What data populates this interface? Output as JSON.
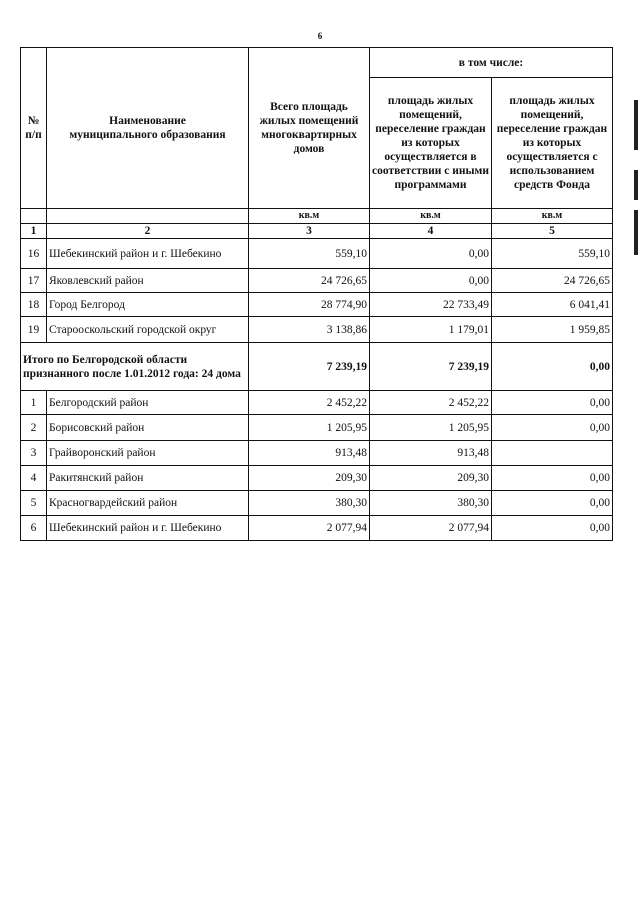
{
  "page_number": "6",
  "header": {
    "col1": "№ п/п",
    "col2": "Наименование муниципального образования",
    "col3": "Всего площадь жилых помещений многоквартирных домов",
    "group": "в том числе:",
    "col4": "площадь жилых помещений, переселение граждан из которых осуществляется в соответствии с иными программами",
    "col5": "площадь жилых помещений, переселение граждан из которых осуществляется с использованием средств Фонда",
    "unit3": "кв.м",
    "unit4": "кв.м",
    "unit5": "кв.м",
    "n1": "1",
    "n2": "2",
    "n3": "3",
    "n4": "4",
    "n5": "5"
  },
  "rows_a": [
    {
      "no": "16",
      "name": "Шебекинский район и г. Шебекино",
      "total": "559,10",
      "other": "0,00",
      "fund": "559,10"
    },
    {
      "no": "17",
      "name": "Яковлевский район",
      "total": "24 726,65",
      "other": "0,00",
      "fund": "24 726,65"
    },
    {
      "no": "18",
      "name": "Город Белгород",
      "total": "28 774,90",
      "other": "22 733,49",
      "fund": "6 041,41"
    },
    {
      "no": "19",
      "name": "Старооскольский городской округ",
      "total": "3 138,86",
      "other": "1 179,01",
      "fund": "1 959,85"
    }
  ],
  "subtotal": {
    "label": "Итого по Белгородской области признанного после 1.01.2012 года: 24 дома",
    "total": "7 239,19",
    "other": "7 239,19",
    "fund": "0,00"
  },
  "rows_b": [
    {
      "no": "1",
      "name": "Белгородский район",
      "total": "2 452,22",
      "other": "2 452,22",
      "fund": "0,00"
    },
    {
      "no": "2",
      "name": "Борисовский район",
      "total": "1 205,95",
      "other": "1 205,95",
      "fund": "0,00"
    },
    {
      "no": "3",
      "name": "Грайворонский район",
      "total": "913,48",
      "other": "913,48",
      "fund": ""
    },
    {
      "no": "4",
      "name": "Ракитянский район",
      "total": "209,30",
      "other": "209,30",
      "fund": "0,00"
    },
    {
      "no": "5",
      "name": "Красногвардейский район",
      "total": "380,30",
      "other": "380,30",
      "fund": "0,00"
    },
    {
      "no": "6",
      "name": "Шебекинский район и г. Шебекино",
      "total": "2 077,94",
      "other": "2 077,94",
      "fund": "0,00"
    }
  ]
}
